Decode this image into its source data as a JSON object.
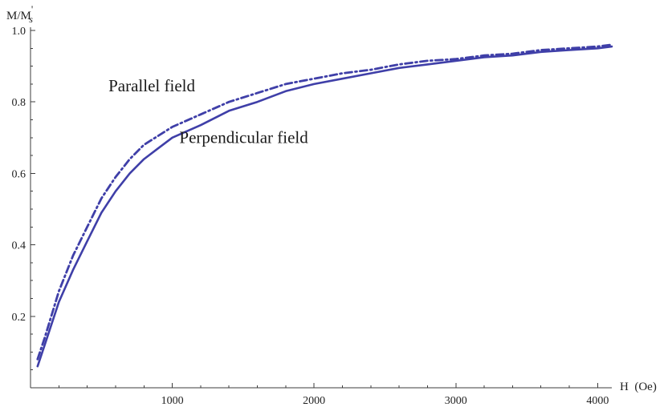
{
  "chart_data": {
    "type": "line",
    "title": "",
    "xlabel": "H  (Oe)",
    "ylabel": "M/M",
    "ylabel_subscript": "s",
    "ylabel_prime": "'",
    "xlim": [
      0,
      4100
    ],
    "ylim": [
      0.0,
      1.0
    ],
    "x_ticks": [
      1000,
      2000,
      3000,
      4000
    ],
    "x_tick_labels": [
      "1000",
      "2000",
      "3000",
      "4000"
    ],
    "y_ticks": [
      0.2,
      0.4,
      0.6,
      0.8,
      1.0
    ],
    "y_tick_labels": [
      "0.2",
      "0.4",
      "0.6",
      "0.8",
      "1.0"
    ],
    "grid": false,
    "legend": "none",
    "colors": {
      "series": "#3f3fa8",
      "axis": "#3c3c3c",
      "text": "#222222"
    },
    "annotations": [
      {
        "text": "Parallel field",
        "x": 550,
        "y": 0.83
      },
      {
        "text": "Perpendicular field",
        "x": 1050,
        "y": 0.685
      }
    ],
    "series": [
      {
        "name": "Parallel field",
        "style": "dash-dot",
        "x": [
          50,
          100,
          200,
          300,
          400,
          500,
          600,
          700,
          800,
          900,
          1000,
          1200,
          1400,
          1600,
          1800,
          2000,
          2200,
          2400,
          2600,
          2800,
          3000,
          3200,
          3400,
          3600,
          3800,
          4000,
          4100
        ],
        "y": [
          0.08,
          0.14,
          0.27,
          0.37,
          0.45,
          0.53,
          0.59,
          0.64,
          0.68,
          0.705,
          0.73,
          0.765,
          0.8,
          0.825,
          0.85,
          0.865,
          0.88,
          0.89,
          0.905,
          0.915,
          0.92,
          0.93,
          0.935,
          0.945,
          0.95,
          0.955,
          0.96
        ]
      },
      {
        "name": "Perpendicular field",
        "style": "solid",
        "x": [
          50,
          100,
          200,
          300,
          400,
          500,
          600,
          700,
          800,
          900,
          1000,
          1200,
          1400,
          1600,
          1800,
          2000,
          2200,
          2400,
          2600,
          2800,
          3000,
          3200,
          3400,
          3600,
          3800,
          4000,
          4100
        ],
        "y": [
          0.06,
          0.12,
          0.24,
          0.33,
          0.41,
          0.49,
          0.55,
          0.6,
          0.64,
          0.67,
          0.7,
          0.735,
          0.775,
          0.8,
          0.83,
          0.85,
          0.865,
          0.88,
          0.895,
          0.905,
          0.915,
          0.925,
          0.93,
          0.94,
          0.945,
          0.95,
          0.955
        ]
      }
    ]
  }
}
